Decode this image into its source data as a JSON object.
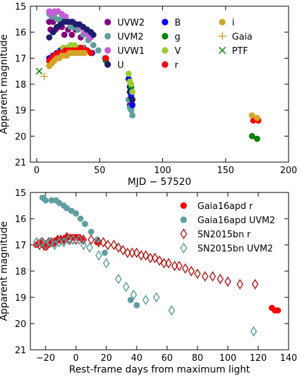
{
  "chart_data": [
    {
      "type": "scatter",
      "xlabel": "MJD − 57520",
      "ylabel": "Apparent magnitude",
      "xlim": [
        -5,
        200
      ],
      "ylim": [
        21,
        15
      ],
      "y_inverted": true,
      "xticks": [
        0,
        50,
        100,
        150,
        200
      ],
      "yticks": [
        15,
        16,
        17,
        18,
        19,
        20,
        21
      ],
      "legend_position": "top-right",
      "legend_columns": 3,
      "series": [
        {
          "name": "UVW2",
          "color": "#800080",
          "marker": "circle",
          "points": [
            [
              10,
              15.6
            ],
            [
              11,
              15.9
            ],
            [
              13,
              15.6
            ],
            [
              15,
              15.9
            ],
            [
              17,
              15.8
            ],
            [
              20,
              15.8
            ],
            [
              22,
              16.1
            ],
            [
              25,
              15.9
            ],
            [
              28,
              16.1
            ],
            [
              31,
              15.9
            ],
            [
              35,
              16.2
            ],
            [
              38,
              16.0
            ],
            [
              41,
              16.3
            ],
            [
              43,
              16.0
            ],
            [
              74,
              18.8
            ],
            [
              75,
              18.9
            ]
          ]
        },
        {
          "name": "UVM2",
          "color": "#5f9ea0",
          "marker": "circle",
          "points": [
            [
              10,
              15.3
            ],
            [
              12,
              15.4
            ],
            [
              14,
              15.3
            ],
            [
              16,
              15.5
            ],
            [
              19,
              15.5
            ],
            [
              21,
              15.6
            ],
            [
              24,
              15.6
            ],
            [
              27,
              15.8
            ],
            [
              30,
              15.8
            ],
            [
              33,
              15.9
            ],
            [
              37,
              16.1
            ],
            [
              41,
              16.3
            ],
            [
              45,
              16.5
            ],
            [
              49,
              16.7
            ],
            [
              54,
              17.0
            ],
            [
              73,
              18.6
            ],
            [
              74,
              18.9
            ],
            [
              75,
              19.0
            ],
            [
              76,
              19.2
            ]
          ]
        },
        {
          "name": "UVW1",
          "color": "#c45dd8",
          "marker": "circle",
          "points": [
            [
              10,
              15.2
            ],
            [
              12,
              15.3
            ],
            [
              14,
              15.2
            ],
            [
              17,
              15.2
            ],
            [
              20,
              15.3
            ],
            [
              23,
              15.4
            ],
            [
              26,
              15.6
            ],
            [
              29,
              15.6
            ],
            [
              32,
              15.7
            ],
            [
              35,
              15.8
            ],
            [
              38,
              16.0
            ],
            [
              41,
              16.1
            ],
            [
              43,
              16.2
            ]
          ]
        },
        {
          "name": "U",
          "color": "#1b1f6b",
          "marker": "circle",
          "points": [
            [
              10,
              16.2
            ],
            [
              13,
              16.0
            ],
            [
              16,
              15.8
            ],
            [
              19,
              15.7
            ],
            [
              22,
              15.6
            ],
            [
              25,
              15.6
            ],
            [
              28,
              15.6
            ],
            [
              31,
              15.7
            ],
            [
              34,
              15.7
            ],
            [
              37,
              15.8
            ],
            [
              40,
              15.9
            ],
            [
              43,
              16.0
            ],
            [
              45,
              16.1
            ],
            [
              74,
              18.3
            ],
            [
              75,
              18.5
            ],
            [
              76,
              18.6
            ]
          ]
        },
        {
          "name": "B",
          "color": "#0000ff",
          "marker": "circle",
          "points": [
            [
              10,
              17.0
            ],
            [
              13,
              16.9
            ],
            [
              16,
              16.8
            ],
            [
              19,
              16.7
            ],
            [
              22,
              16.7
            ],
            [
              25,
              16.6
            ],
            [
              28,
              16.6
            ],
            [
              31,
              16.6
            ],
            [
              34,
              16.6
            ],
            [
              37,
              16.6
            ],
            [
              40,
              16.7
            ],
            [
              44,
              16.8
            ],
            [
              73,
              17.8
            ],
            [
              74,
              18.1
            ],
            [
              75,
              18.4
            ],
            [
              76,
              18.8
            ]
          ]
        },
        {
          "name": "g",
          "color": "#008000",
          "marker": "circle",
          "points": [
            [
              55,
              17.1
            ],
            [
              74,
              17.9
            ],
            [
              75,
              18.1
            ],
            [
              171,
              20.0
            ],
            [
              175,
              20.1
            ]
          ]
        },
        {
          "name": "V",
          "color": "#9acd32",
          "marker": "circle",
          "points": [
            [
              12,
              17.0
            ],
            [
              15,
              16.9
            ],
            [
              18,
              16.8
            ],
            [
              21,
              16.6
            ],
            [
              24,
              16.6
            ],
            [
              27,
              16.5
            ],
            [
              30,
              16.5
            ],
            [
              33,
              16.6
            ],
            [
              36,
              16.6
            ],
            [
              40,
              16.7
            ],
            [
              43,
              16.8
            ],
            [
              73,
              17.6
            ],
            [
              74,
              17.9
            ],
            [
              75,
              18.0
            ],
            [
              76,
              18.3
            ]
          ]
        },
        {
          "name": "r",
          "color": "#ff0000",
          "marker": "circle",
          "points": [
            [
              10,
              17.1
            ],
            [
              12,
              17.0
            ],
            [
              14,
              16.9
            ],
            [
              17,
              16.8
            ],
            [
              20,
              16.8
            ],
            [
              23,
              16.7
            ],
            [
              26,
              16.7
            ],
            [
              29,
              16.7
            ],
            [
              32,
              16.7
            ],
            [
              35,
              16.6
            ],
            [
              38,
              16.7
            ],
            [
              40,
              16.7
            ],
            [
              43,
              16.8
            ],
            [
              55,
              17.0
            ],
            [
              172,
              19.4
            ],
            [
              176,
              19.4
            ]
          ]
        },
        {
          "name": "i",
          "color": "#d4a42a",
          "marker": "circle",
          "points": [
            [
              10,
              17.3
            ],
            [
              12,
              17.2
            ],
            [
              14,
              17.1
            ],
            [
              16,
              17.0
            ],
            [
              18,
              17.0
            ],
            [
              20,
              16.9
            ],
            [
              22,
              16.9
            ],
            [
              24,
              16.9
            ],
            [
              26,
              16.8
            ],
            [
              28,
              16.8
            ],
            [
              30,
              16.8
            ],
            [
              32,
              16.8
            ],
            [
              34,
              16.8
            ],
            [
              36,
              16.8
            ],
            [
              38,
              16.8
            ],
            [
              171,
              19.2
            ],
            [
              175,
              19.3
            ]
          ]
        },
        {
          "name": "Gaia",
          "color": "#d4a42a",
          "marker": "plus",
          "points": [
            [
              6,
              17.7
            ]
          ]
        },
        {
          "name": "PTF",
          "color": "#008000",
          "marker": "x",
          "points": [
            [
              2,
              17.5
            ]
          ]
        }
      ]
    },
    {
      "type": "scatter",
      "xlabel": "Rest-frame days from maximum light",
      "ylabel": "Apparent magnitude",
      "xlim": [
        -30,
        140
      ],
      "ylim": [
        21,
        15
      ],
      "y_inverted": true,
      "xticks": [
        -20,
        0,
        20,
        40,
        60,
        80,
        100,
        120,
        140
      ],
      "yticks": [
        15,
        16,
        17,
        18,
        19,
        20,
        21
      ],
      "legend_position": "top-right",
      "series": [
        {
          "name": "Gaia16apd r",
          "color": "#ff0000",
          "marker": "circle",
          "points": [
            [
              -26,
              17.0
            ],
            [
              -24,
              16.9
            ],
            [
              -22,
              17.0
            ],
            [
              -20,
              17.1
            ],
            [
              -18,
              17.0
            ],
            [
              -16,
              16.9
            ],
            [
              -14,
              16.9
            ],
            [
              -12,
              16.8
            ],
            [
              -10,
              16.8
            ],
            [
              -8,
              16.8
            ],
            [
              -6,
              16.7
            ],
            [
              -4,
              16.7
            ],
            [
              -2,
              16.7
            ],
            [
              0,
              16.7
            ],
            [
              2,
              16.7
            ],
            [
              4,
              16.8
            ],
            [
              14,
              16.9
            ],
            [
              129,
              19.4
            ],
            [
              131,
              19.5
            ],
            [
              133,
              19.5
            ]
          ]
        },
        {
          "name": "Gaia16apd UVM2",
          "color": "#5f9ea0",
          "marker": "circle",
          "points": [
            [
              -22,
              15.2
            ],
            [
              -20,
              15.3
            ],
            [
              -16,
              15.3
            ],
            [
              -13,
              15.3
            ],
            [
              -11,
              15.4
            ],
            [
              -8,
              15.5
            ],
            [
              -6,
              15.6
            ],
            [
              -3,
              15.7
            ],
            [
              0,
              15.8
            ],
            [
              3,
              16.0
            ],
            [
              6,
              16.2
            ],
            [
              10,
              16.5
            ],
            [
              14,
              16.8
            ],
            [
              19,
              17.3
            ],
            [
              36,
              19.1
            ],
            [
              40,
              19.3
            ]
          ]
        },
        {
          "name": "SN2015bn r",
          "color": "#b22222",
          "marker": "diamond-open",
          "points": [
            [
              -26,
              16.9
            ],
            [
              -24,
              17.0
            ],
            [
              -22,
              16.9
            ],
            [
              -20,
              17.0
            ],
            [
              -18,
              16.9
            ],
            [
              -16,
              16.9
            ],
            [
              -14,
              16.9
            ],
            [
              -12,
              16.8
            ],
            [
              -10,
              16.8
            ],
            [
              -8,
              16.8
            ],
            [
              -6,
              16.7
            ],
            [
              -4,
              16.8
            ],
            [
              -2,
              16.8
            ],
            [
              0,
              16.8
            ],
            [
              5,
              16.8
            ],
            [
              10,
              16.8
            ],
            [
              15,
              16.9
            ],
            [
              18,
              16.9
            ],
            [
              21,
              17.0
            ],
            [
              25,
              17.0
            ],
            [
              28,
              17.1
            ],
            [
              31,
              17.2
            ],
            [
              34,
              17.3
            ],
            [
              37,
              17.3
            ],
            [
              40,
              17.3
            ],
            [
              43,
              17.4
            ],
            [
              46,
              17.4
            ],
            [
              49,
              17.5
            ],
            [
              52,
              17.5
            ],
            [
              55,
              17.6
            ],
            [
              58,
              17.7
            ],
            [
              61,
              17.7
            ],
            [
              65,
              17.8
            ],
            [
              68,
              17.8
            ],
            [
              72,
              17.9
            ],
            [
              76,
              18.0
            ],
            [
              80,
              18.1
            ],
            [
              85,
              18.2
            ],
            [
              90,
              18.2
            ],
            [
              95,
              18.3
            ],
            [
              100,
              18.4
            ],
            [
              108,
              18.5
            ],
            [
              118,
              18.5
            ]
          ]
        },
        {
          "name": "SN2015bn UVM2",
          "color": "#5f9ea0",
          "marker": "diamond-open",
          "points": [
            [
              -26,
              16.9
            ],
            [
              -23,
              16.9
            ],
            [
              -20,
              17.0
            ],
            [
              -17,
              16.9
            ],
            [
              -14,
              17.0
            ],
            [
              -11,
              16.9
            ],
            [
              -8,
              16.9
            ],
            [
              -5,
              16.8
            ],
            [
              -2,
              16.8
            ],
            [
              2,
              16.8
            ],
            [
              5,
              17.0
            ],
            [
              9,
              17.1
            ],
            [
              15,
              17.4
            ],
            [
              20,
              17.7
            ],
            [
              28,
              18.3
            ],
            [
              33,
              18.6
            ],
            [
              38,
              18.9
            ],
            [
              46,
              19.1
            ],
            [
              53,
              19.0
            ],
            [
              63,
              19.5
            ],
            [
              117,
              20.3
            ]
          ]
        }
      ]
    }
  ]
}
